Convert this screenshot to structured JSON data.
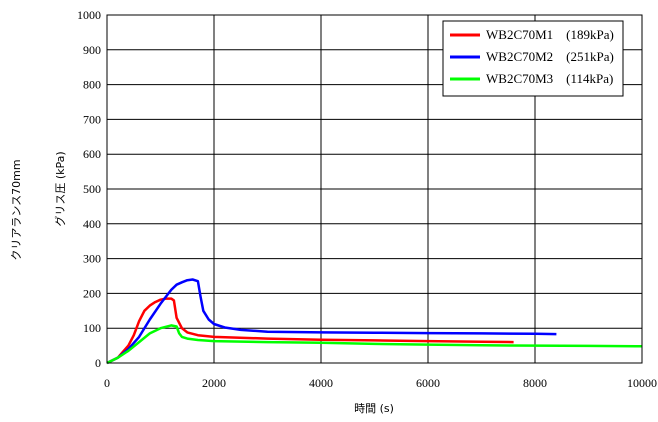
{
  "chart_data": {
    "type": "line",
    "title": "",
    "xlabel": "時間 (s)",
    "ylabel": "グリス圧 (kPa)",
    "side_label": "クリアランス70mm",
    "xlim": [
      0,
      10000
    ],
    "ylim": [
      0,
      1000
    ],
    "x_ticks": [
      0,
      2000,
      4000,
      6000,
      8000,
      10000
    ],
    "y_ticks": [
      0,
      100,
      200,
      300,
      400,
      500,
      600,
      700,
      800,
      900,
      1000
    ],
    "grid": true,
    "legend_position": "top-right",
    "series": [
      {
        "name": "WB2C70M1　(189kPa)",
        "color": "#ff0000",
        "x": [
          0,
          200,
          400,
          500,
          600,
          700,
          800,
          900,
          1000,
          1100,
          1200,
          1250,
          1300,
          1400,
          1500,
          1700,
          2000,
          3000,
          4000,
          5000,
          6000,
          7000,
          7600
        ],
        "y": [
          0,
          15,
          50,
          80,
          120,
          150,
          165,
          175,
          182,
          185,
          185,
          180,
          130,
          100,
          88,
          80,
          75,
          70,
          67,
          65,
          63,
          61,
          60
        ]
      },
      {
        "name": "WB2C70M2　(251kPa)",
        "color": "#0000ff",
        "x": [
          0,
          200,
          400,
          600,
          800,
          1000,
          1200,
          1300,
          1400,
          1500,
          1600,
          1700,
          1750,
          1800,
          1900,
          2000,
          2200,
          2500,
          3000,
          4000,
          5000,
          6000,
          7000,
          8000,
          8400
        ],
        "y": [
          0,
          15,
          40,
          75,
          125,
          170,
          210,
          225,
          232,
          238,
          240,
          235,
          190,
          150,
          125,
          112,
          102,
          95,
          90,
          88,
          87,
          86,
          85,
          84,
          83
        ]
      },
      {
        "name": "WB2C70M3　(114kPa)",
        "color": "#00ff00",
        "x": [
          0,
          200,
          400,
          600,
          800,
          1000,
          1200,
          1300,
          1350,
          1400,
          1500,
          1700,
          2000,
          3000,
          4000,
          5000,
          6000,
          7000,
          8000,
          9000,
          10000
        ],
        "y": [
          0,
          15,
          35,
          60,
          85,
          100,
          108,
          105,
          85,
          75,
          70,
          66,
          63,
          60,
          58,
          55,
          53,
          51,
          50,
          49,
          48
        ]
      }
    ]
  }
}
